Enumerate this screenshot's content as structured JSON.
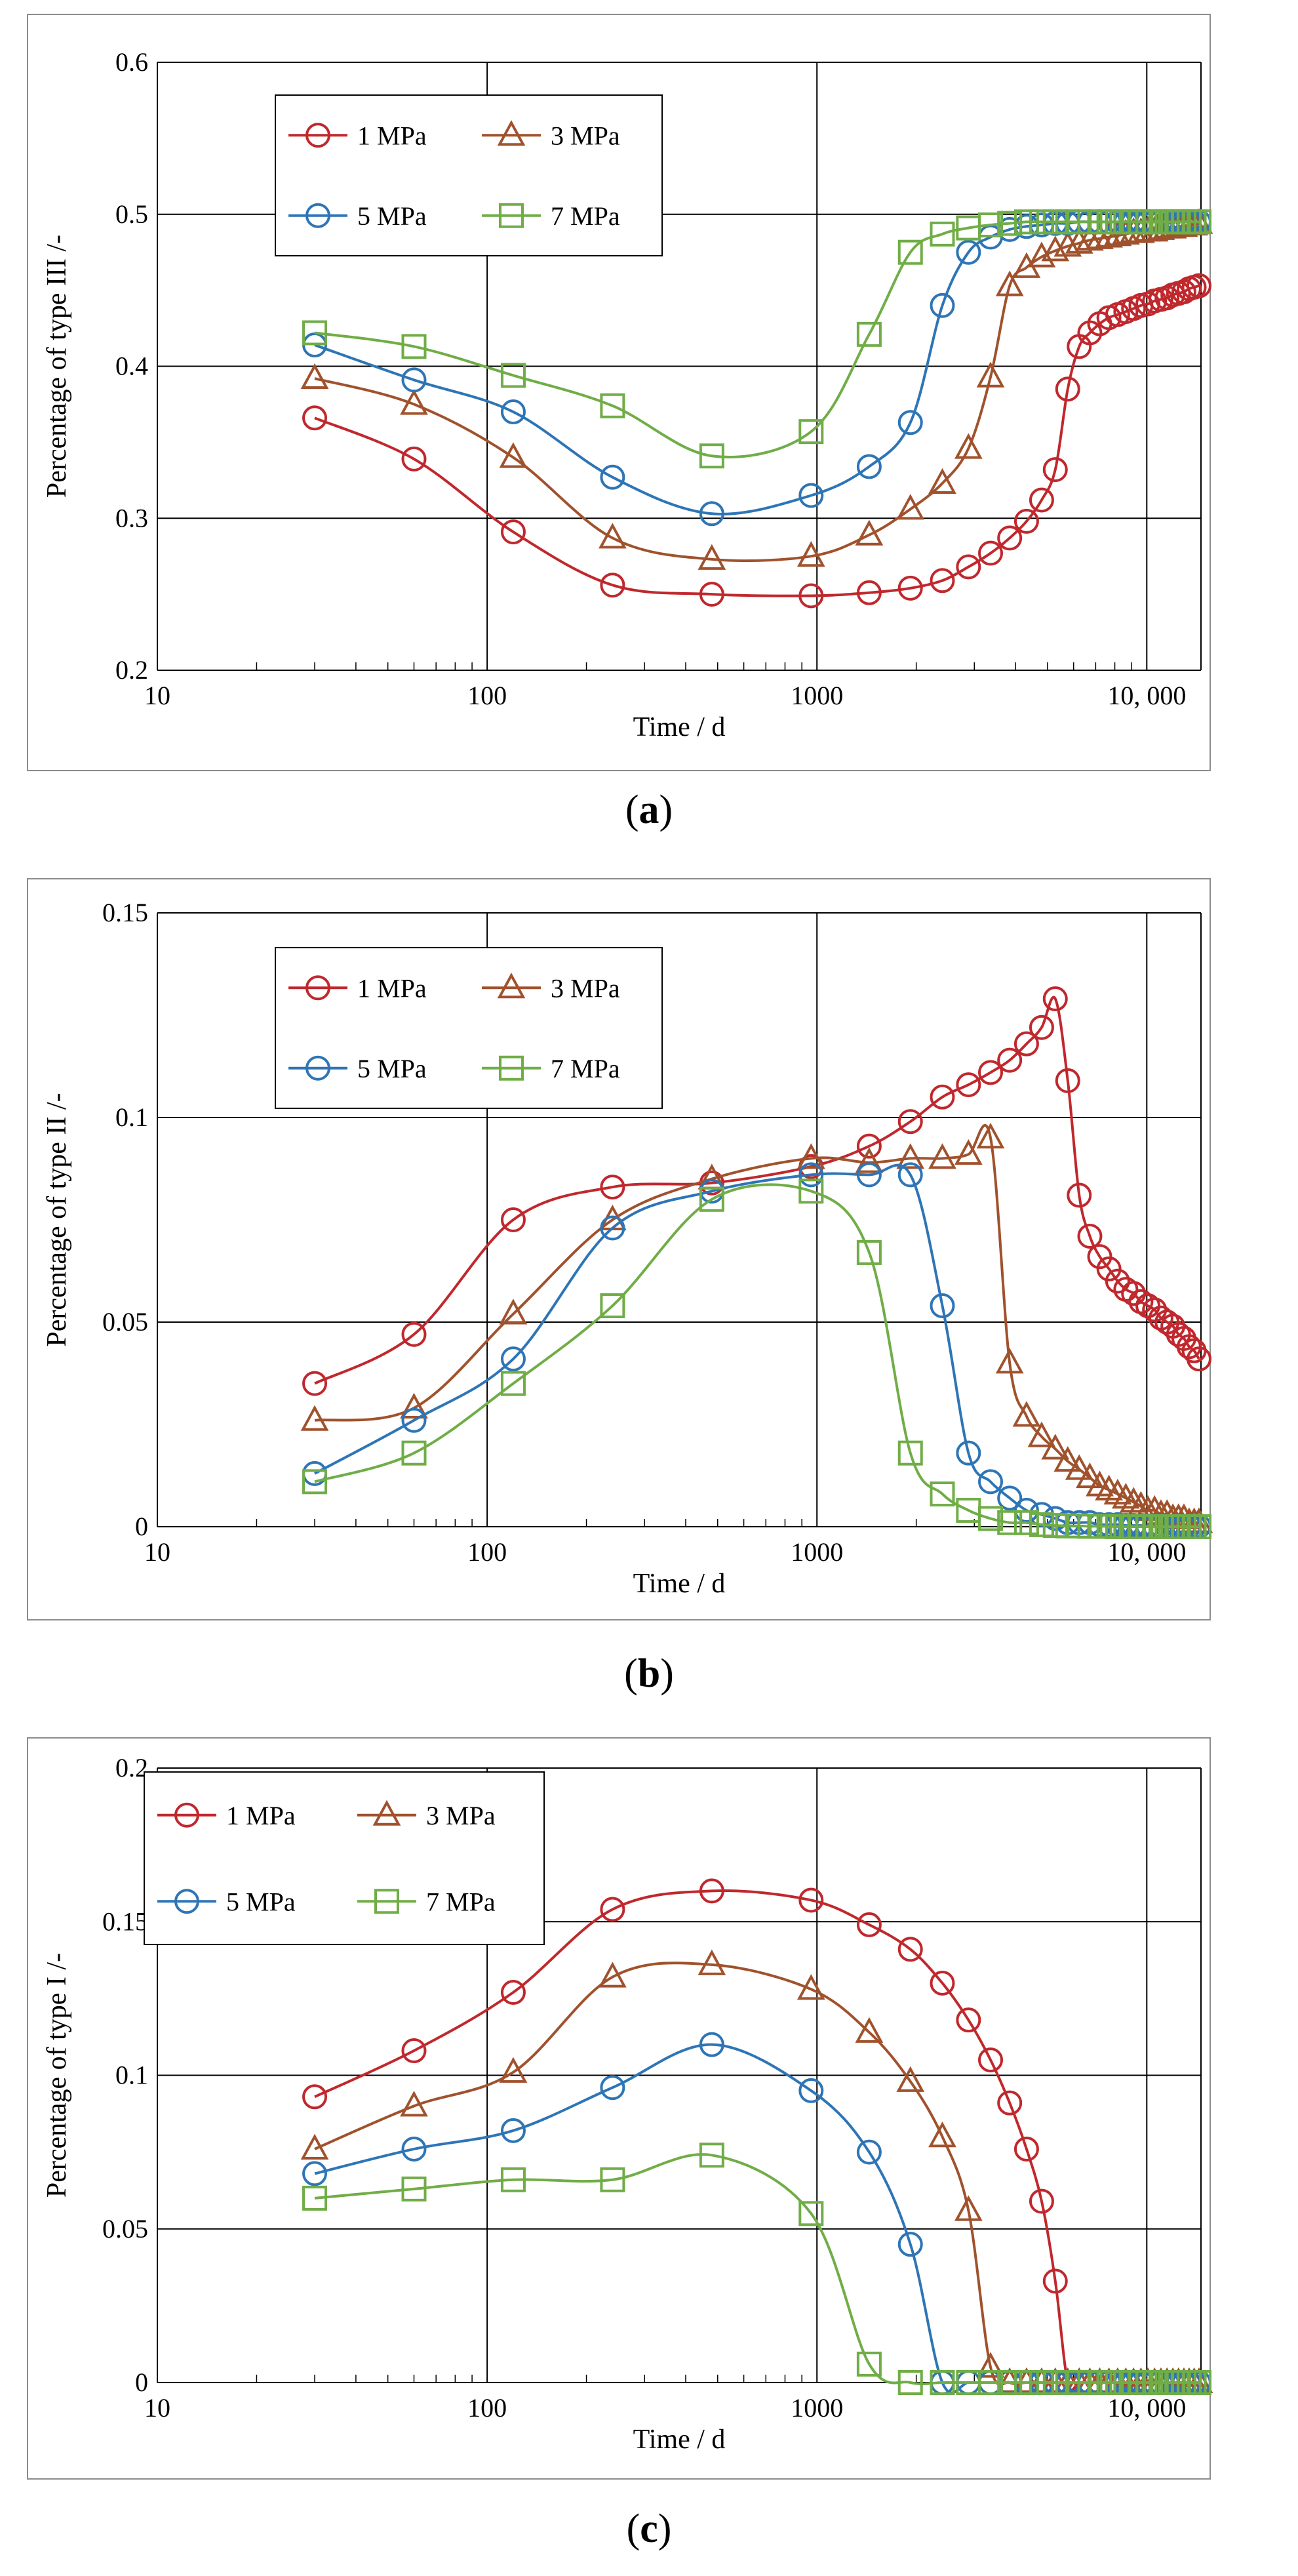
{
  "chart_data": [
    {
      "type": "line",
      "panel": "a",
      "caption_open": "(",
      "caption_letter": "a",
      "caption_close": ")",
      "title": "",
      "xlabel": "Time / d",
      "ylabel": "Percentage of type III /-",
      "xscale": "log",
      "xlim": [
        10,
        14600
      ],
      "ylim": [
        0.2,
        0.6
      ],
      "xticks": [
        10,
        100,
        1000,
        10000
      ],
      "xtick_labels": [
        "10",
        "100",
        "1000",
        "10, 000"
      ],
      "yticks": [
        0.2,
        0.3,
        0.4,
        0.5,
        0.6
      ],
      "ytick_labels": [
        "0.2",
        "0.3",
        "0.4",
        "0.5",
        "0.6"
      ],
      "grid": true,
      "legend": "top-left",
      "series": [
        {
          "name": "1 MPa",
          "marker": "circle",
          "color": "#c0282d",
          "x": [
            30,
            60,
            120,
            240,
            480,
            960,
            1440,
            1920,
            2400,
            2880,
            3360,
            3840,
            4320,
            4800,
            5280,
            5760,
            6240,
            6720,
            7200,
            7680,
            8160,
            8640,
            9120,
            9600,
            10080,
            10560,
            11040,
            11520,
            12000,
            12480,
            12960,
            13440,
            13920,
            14400
          ],
          "y": [
            0.366,
            0.339,
            0.291,
            0.256,
            0.25,
            0.249,
            0.251,
            0.254,
            0.259,
            0.268,
            0.277,
            0.287,
            0.298,
            0.312,
            0.332,
            0.385,
            0.413,
            0.422,
            0.428,
            0.432,
            0.434,
            0.436,
            0.438,
            0.44,
            0.441,
            0.443,
            0.444,
            0.445,
            0.447,
            0.448,
            0.449,
            0.451,
            0.452,
            0.453
          ]
        },
        {
          "name": "3 MPa",
          "marker": "triangle",
          "color": "#a0522d",
          "x": [
            30,
            60,
            120,
            240,
            480,
            960,
            1440,
            1920,
            2400,
            2880,
            3360,
            3840,
            4320,
            4800,
            5280,
            5760,
            6240,
            6720,
            7200,
            7680,
            8160,
            8640,
            9120,
            9600,
            10080,
            10560,
            11040,
            11520,
            12000,
            12480,
            12960,
            13440,
            13920,
            14400
          ],
          "y": [
            0.392,
            0.375,
            0.34,
            0.287,
            0.273,
            0.275,
            0.289,
            0.306,
            0.323,
            0.346,
            0.393,
            0.453,
            0.465,
            0.472,
            0.476,
            0.479,
            0.481,
            0.483,
            0.484,
            0.485,
            0.486,
            0.487,
            0.488,
            0.488,
            0.489,
            0.489,
            0.49,
            0.491,
            0.491,
            0.492,
            0.492,
            0.493,
            0.493,
            0.494
          ]
        },
        {
          "name": "5 MPa",
          "marker": "circle",
          "color": "#2e75b6",
          "x": [
            30,
            60,
            120,
            240,
            480,
            960,
            1440,
            1920,
            2400,
            2880,
            3360,
            3840,
            4320,
            4800,
            5280,
            5760,
            6240,
            6720,
            7200,
            7680,
            8160,
            8640,
            9120,
            9600,
            10080,
            10560,
            11040,
            11520,
            12000,
            12480,
            12960,
            13440,
            13920,
            14400
          ],
          "y": [
            0.414,
            0.391,
            0.37,
            0.327,
            0.303,
            0.315,
            0.334,
            0.363,
            0.44,
            0.475,
            0.485,
            0.49,
            0.492,
            0.493,
            0.494,
            0.494,
            0.495,
            0.495,
            0.495,
            0.495,
            0.495,
            0.495,
            0.495,
            0.495,
            0.495,
            0.495,
            0.495,
            0.495,
            0.495,
            0.495,
            0.495,
            0.495,
            0.495,
            0.495
          ]
        },
        {
          "name": "7 MPa",
          "marker": "square",
          "color": "#70ad47",
          "x": [
            30,
            60,
            120,
            240,
            480,
            960,
            1440,
            1920,
            2400,
            2880,
            3360,
            3840,
            4320,
            4800,
            5280,
            5760,
            6240,
            6720,
            7200,
            7680,
            8160,
            8640,
            9120,
            9600,
            10080,
            10560,
            11040,
            11520,
            12000,
            12480,
            12960,
            13440,
            13920,
            14400
          ],
          "y": [
            0.422,
            0.413,
            0.394,
            0.374,
            0.341,
            0.357,
            0.421,
            0.475,
            0.487,
            0.491,
            0.493,
            0.494,
            0.495,
            0.495,
            0.495,
            0.495,
            0.495,
            0.495,
            0.495,
            0.495,
            0.495,
            0.495,
            0.495,
            0.495,
            0.495,
            0.495,
            0.495,
            0.495,
            0.495,
            0.495,
            0.495,
            0.495,
            0.495,
            0.495
          ]
        }
      ]
    },
    {
      "type": "line",
      "panel": "b",
      "caption_open": "(",
      "caption_letter": "b",
      "caption_close": ")",
      "title": "",
      "xlabel": "Time / d",
      "ylabel": "Percentage of type II /-",
      "xscale": "log",
      "xlim": [
        10,
        14600
      ],
      "ylim": [
        0,
        0.15
      ],
      "xticks": [
        10,
        100,
        1000,
        10000
      ],
      "xtick_labels": [
        "10",
        "100",
        "1000",
        "10, 000"
      ],
      "yticks": [
        0,
        0.05,
        0.1,
        0.15
      ],
      "ytick_labels": [
        "0",
        "0.05",
        "0.1",
        "0.15"
      ],
      "grid": true,
      "legend": "top-left",
      "series": [
        {
          "name": "1 MPa",
          "marker": "circle",
          "color": "#c0282d",
          "x": [
            30,
            60,
            120,
            240,
            480,
            960,
            1440,
            1920,
            2400,
            2880,
            3360,
            3840,
            4320,
            4800,
            5280,
            5760,
            6240,
            6720,
            7200,
            7680,
            8160,
            8640,
            9120,
            9600,
            10080,
            10560,
            11040,
            11520,
            12000,
            12480,
            12960,
            13440,
            13920,
            14400
          ],
          "y": [
            0.035,
            0.047,
            0.075,
            0.083,
            0.084,
            0.088,
            0.093,
            0.099,
            0.105,
            0.108,
            0.111,
            0.114,
            0.118,
            0.122,
            0.129,
            0.109,
            0.081,
            0.071,
            0.066,
            0.063,
            0.06,
            0.058,
            0.057,
            0.055,
            0.054,
            0.053,
            0.051,
            0.05,
            0.049,
            0.047,
            0.046,
            0.044,
            0.043,
            0.041
          ]
        },
        {
          "name": "3 MPa",
          "marker": "triangle",
          "color": "#a0522d",
          "x": [
            30,
            60,
            120,
            240,
            480,
            960,
            1440,
            1920,
            2400,
            2880,
            3360,
            3840,
            4320,
            4800,
            5280,
            5760,
            6240,
            6720,
            7200,
            7680,
            8160,
            8640,
            9120,
            9600,
            10080,
            10560,
            11040,
            11520,
            12000,
            12480,
            12960,
            13440,
            13920,
            14400
          ],
          "y": [
            0.026,
            0.029,
            0.052,
            0.075,
            0.085,
            0.09,
            0.089,
            0.09,
            0.09,
            0.091,
            0.095,
            0.04,
            0.027,
            0.022,
            0.019,
            0.016,
            0.014,
            0.012,
            0.01,
            0.009,
            0.008,
            0.007,
            0.006,
            0.005,
            0.004,
            0.004,
            0.003,
            0.003,
            0.002,
            0.002,
            0.002,
            0.001,
            0.001,
            0.001
          ]
        },
        {
          "name": "5 MPa",
          "marker": "circle",
          "color": "#2e75b6",
          "x": [
            30,
            60,
            120,
            240,
            480,
            960,
            1440,
            1920,
            2400,
            2880,
            3360,
            3840,
            4320,
            4800,
            5280,
            5760,
            6240,
            6720,
            7200,
            7680,
            8160,
            8640,
            9120,
            9600,
            10080,
            10560,
            11040,
            11520,
            12000,
            12480,
            12960,
            13440,
            13920,
            14400
          ],
          "y": [
            0.013,
            0.026,
            0.041,
            0.073,
            0.082,
            0.086,
            0.086,
            0.086,
            0.054,
            0.018,
            0.011,
            0.007,
            0.004,
            0.003,
            0.002,
            0.001,
            0.001,
            0.001,
            0.0005,
            0.0005,
            0.0005,
            0.0003,
            0.0003,
            0.0003,
            0.0002,
            0.0002,
            0.0002,
            0.0001,
            0.0001,
            0.0001,
            0.0001,
            0.0001,
            0.0001,
            0.0001
          ]
        },
        {
          "name": "7 MPa",
          "marker": "square",
          "color": "#70ad47",
          "x": [
            30,
            60,
            120,
            240,
            480,
            960,
            1440,
            1920,
            2400,
            2880,
            3360,
            3840,
            4320,
            4800,
            5280,
            5760,
            6240,
            6720,
            7200,
            7680,
            8160,
            8640,
            9120,
            9600,
            10080,
            10560,
            11040,
            11520,
            12000,
            12480,
            12960,
            13440,
            13920,
            14400
          ],
          "y": [
            0.011,
            0.018,
            0.035,
            0.054,
            0.08,
            0.082,
            0.067,
            0.018,
            0.008,
            0.004,
            0.002,
            0.001,
            0.001,
            0.0005,
            0.0003,
            0.0002,
            0.0002,
            0.0001,
            0.0001,
            0.0001,
            0,
            0,
            0,
            0,
            0,
            0,
            0,
            0,
            0,
            0,
            0,
            0,
            0,
            0
          ]
        }
      ]
    },
    {
      "type": "line",
      "panel": "c",
      "caption_open": "(",
      "caption_letter": "c",
      "caption_close": ")",
      "title": "",
      "xlabel": "Time / d",
      "ylabel": "Percentage of type I /-",
      "xscale": "log",
      "xlim": [
        10,
        14600
      ],
      "ylim": [
        0,
        0.2
      ],
      "xticks": [
        10,
        100,
        1000,
        10000
      ],
      "xtick_labels": [
        "10",
        "100",
        "1000",
        "10, 000"
      ],
      "yticks": [
        0,
        0.05,
        0.1,
        0.15,
        0.2
      ],
      "ytick_labels": [
        "0",
        "0.05",
        "0.1",
        "0.15",
        "0.2"
      ],
      "grid": true,
      "legend": "top-left",
      "series": [
        {
          "name": "1 MPa",
          "marker": "circle",
          "color": "#c0282d",
          "x": [
            30,
            60,
            120,
            240,
            480,
            960,
            1440,
            1920,
            2400,
            2880,
            3360,
            3840,
            4320,
            4800,
            5280,
            5760,
            6240,
            6720,
            7200,
            7680,
            8160,
            8640,
            9120,
            9600,
            10080,
            10560,
            11040,
            11520,
            12000,
            12480,
            12960,
            13440,
            13920,
            14400
          ],
          "y": [
            0.093,
            0.108,
            0.127,
            0.154,
            0.16,
            0.157,
            0.149,
            0.141,
            0.13,
            0.118,
            0.105,
            0.091,
            0.076,
            0.059,
            0.033,
            0,
            0,
            0,
            0,
            0,
            0,
            0,
            0,
            0,
            0,
            0,
            0,
            0,
            0,
            0,
            0,
            0,
            0,
            0
          ]
        },
        {
          "name": "3 MPa",
          "marker": "triangle",
          "color": "#a0522d",
          "x": [
            30,
            60,
            120,
            240,
            480,
            960,
            1440,
            1920,
            2400,
            2880,
            3360,
            3840,
            4320,
            4800,
            5280,
            5760,
            6240,
            6720,
            7200,
            7680,
            8160,
            8640,
            9120,
            9600,
            10080,
            10560,
            11040,
            11520,
            12000,
            12480,
            12960,
            13440,
            13920,
            14400
          ],
          "y": [
            0.076,
            0.09,
            0.101,
            0.132,
            0.136,
            0.128,
            0.114,
            0.098,
            0.08,
            0.056,
            0.005,
            0,
            0,
            0,
            0,
            0,
            0,
            0,
            0,
            0,
            0,
            0,
            0,
            0,
            0,
            0,
            0,
            0,
            0,
            0,
            0,
            0,
            0,
            0
          ]
        },
        {
          "name": "5 MPa",
          "marker": "circle",
          "color": "#2e75b6",
          "x": [
            30,
            60,
            120,
            240,
            480,
            960,
            1440,
            1920,
            2400,
            2880,
            3360,
            3840,
            4320,
            4800,
            5280,
            5760,
            6240,
            6720,
            7200,
            7680,
            8160,
            8640,
            9120,
            9600,
            10080,
            10560,
            11040,
            11520,
            12000,
            12480,
            12960,
            13440,
            13920,
            14400
          ],
          "y": [
            0.068,
            0.076,
            0.082,
            0.096,
            0.11,
            0.095,
            0.075,
            0.045,
            0,
            0,
            0,
            0,
            0,
            0,
            0,
            0,
            0,
            0,
            0,
            0,
            0,
            0,
            0,
            0,
            0,
            0,
            0,
            0,
            0,
            0,
            0,
            0,
            0,
            0
          ]
        },
        {
          "name": "7 MPa",
          "marker": "square",
          "color": "#70ad47",
          "x": [
            30,
            60,
            120,
            240,
            480,
            960,
            1440,
            1920,
            2400,
            2880,
            3360,
            3840,
            4320,
            4800,
            5280,
            5760,
            6240,
            6720,
            7200,
            7680,
            8160,
            8640,
            9120,
            9600,
            10080,
            10560,
            11040,
            11520,
            12000,
            12480,
            12960,
            13440,
            13920,
            14400
          ],
          "y": [
            0.06,
            0.063,
            0.066,
            0.066,
            0.074,
            0.055,
            0.006,
            0,
            0,
            0,
            0,
            0,
            0,
            0,
            0,
            0,
            0,
            0,
            0,
            0,
            0,
            0,
            0,
            0,
            0,
            0,
            0,
            0,
            0,
            0,
            0,
            0,
            0,
            0
          ]
        }
      ]
    }
  ]
}
